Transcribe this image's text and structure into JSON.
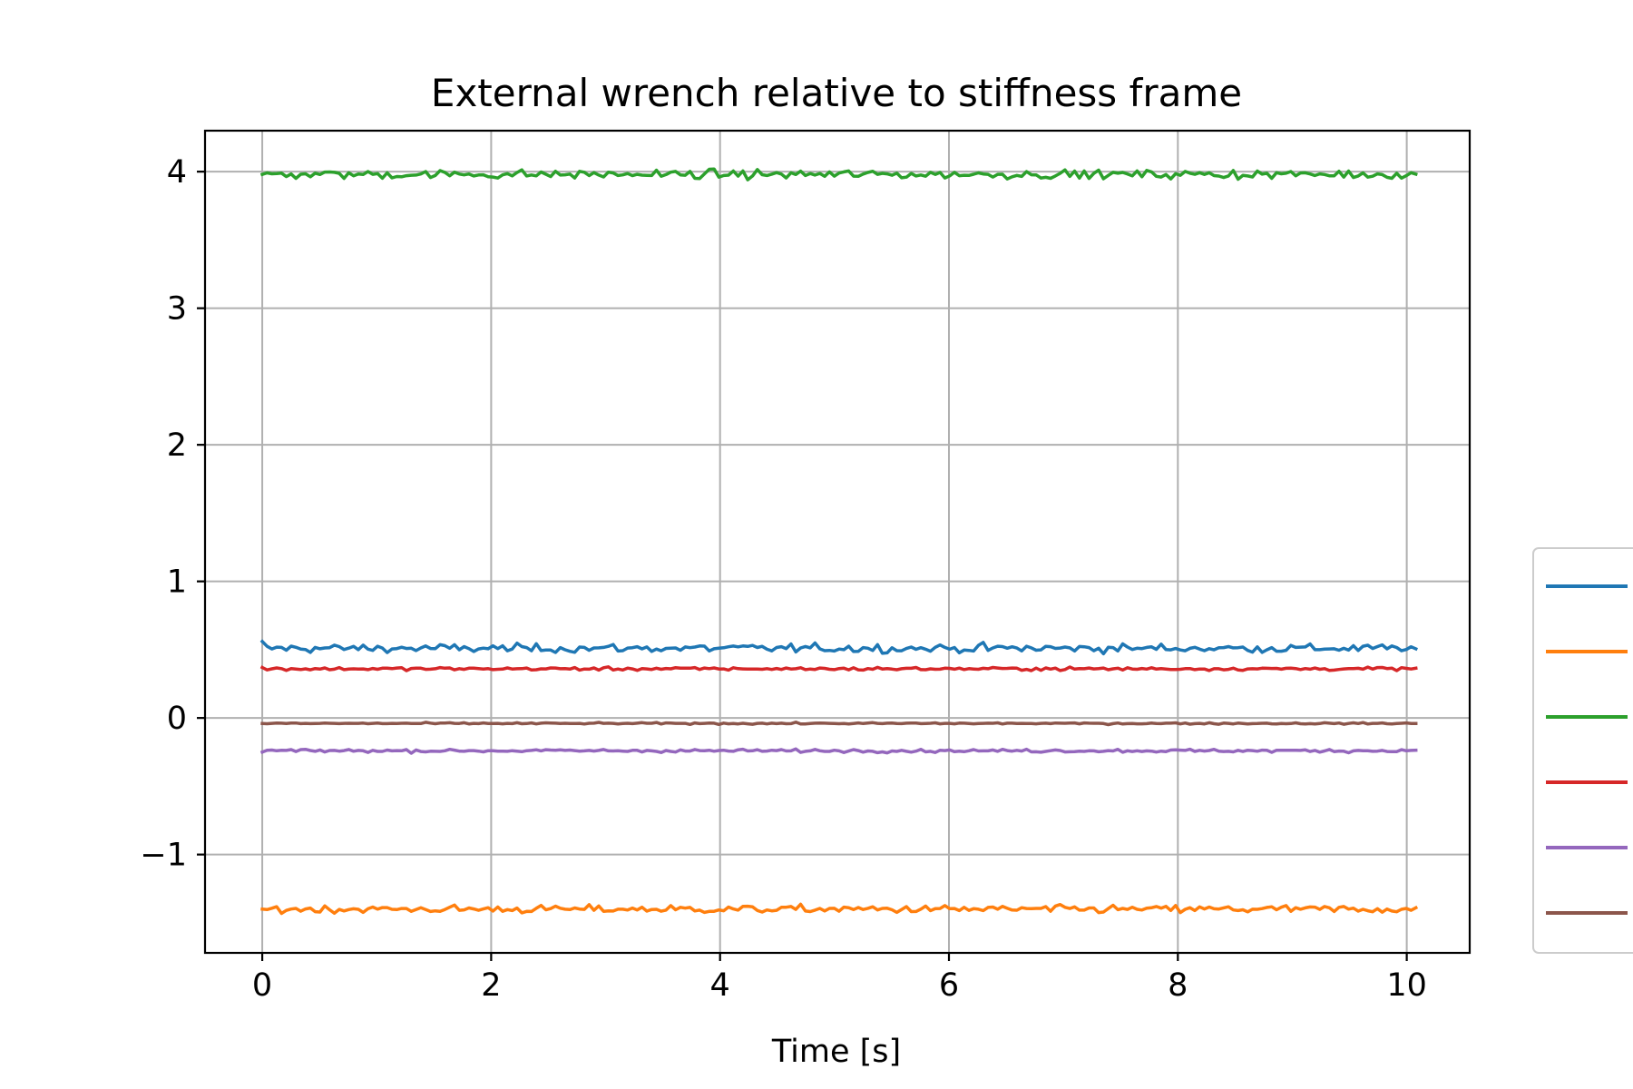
{
  "chart_data": {
    "type": "line",
    "title": "External wrench relative to stiffness frame",
    "xlabel": "Time [s]",
    "ylabel": "",
    "xlim": [
      -0.5,
      10.55
    ],
    "ylim": [
      -1.72,
      4.3
    ],
    "xticks": [
      0,
      2,
      4,
      6,
      8,
      10
    ],
    "yticks": [
      -1,
      0,
      1,
      2,
      3,
      4
    ],
    "xtick_labels": [
      "0",
      "2",
      "4",
      "6",
      "8",
      "10"
    ],
    "ytick_labels": [
      "−1",
      "0",
      "1",
      "2",
      "3",
      "4"
    ],
    "grid": true,
    "legend_position": "center-right-outside",
    "x_start": 0,
    "x_end": 10.08,
    "series": [
      {
        "color": "#1f77b4",
        "mean": 0.51,
        "noise": 0.022,
        "start": 0.56
      },
      {
        "color": "#ff7f0e",
        "mean": -1.4,
        "noise": 0.02,
        "start": -1.4
      },
      {
        "color": "#2ca02c",
        "mean": 3.98,
        "noise": 0.022,
        "start": 3.98
      },
      {
        "color": "#d62728",
        "mean": 0.36,
        "noise": 0.008,
        "start": 0.37
      },
      {
        "color": "#9467bd",
        "mean": -0.24,
        "noise": 0.008,
        "start": -0.25
      },
      {
        "color": "#8c564b",
        "mean": -0.04,
        "noise": 0.004,
        "start": -0.04
      }
    ]
  }
}
